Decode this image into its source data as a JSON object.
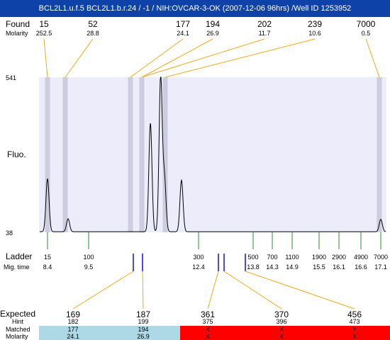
{
  "title": "BCL2L1.u.f.5  BCL2L1.b.r.24 / -1  / NIH:OVCAR-3-OK (2007-12-06 96hrs) /Well ID 1253952",
  "labels": {
    "found": "Found",
    "molarity": "Molarity",
    "fluo": "Fluo.",
    "ladder": "Ladder",
    "mig_time": "Mig. time",
    "expected": "Expected",
    "hint": "Hint",
    "matched": "Matched",
    "molarity_bottom": "Molarity"
  },
  "colors": {
    "title_bg": "#0e42a8",
    "plot_bg": "#ececfb",
    "peak_band": "#cdcde0",
    "found_line": "#f2a81e",
    "ladder_tick": "#2e8b2e",
    "marker_blue": "#1010d0",
    "expected_red": "#e01010",
    "matched_ok": "#add8e6",
    "matched_missing": "#ff0000"
  },
  "chart_data": {
    "type": "line",
    "ylabel": "Fluo.",
    "ylim": [
      38,
      541
    ],
    "y_ticks": [
      "541",
      "38"
    ],
    "found": [
      {
        "size": "15",
        "molarity": "252.5"
      },
      {
        "size": "52",
        "molarity": "28.8"
      },
      {
        "size": "177",
        "molarity": "24.1"
      },
      {
        "size": "194",
        "molarity": "26.9"
      },
      {
        "size": "202",
        "molarity": "11.7"
      },
      {
        "size": "239",
        "molarity": "10.6"
      },
      {
        "size": "7000",
        "molarity": "0.5"
      }
    ],
    "ladder": [
      {
        "size": "15",
        "time": "8.4"
      },
      {
        "size": "100",
        "time": "9.5"
      },
      {
        "size": "300",
        "time": "12.4"
      },
      {
        "size": "500",
        "time": "13.8"
      },
      {
        "size": "700",
        "time": "14.3"
      },
      {
        "size": "1100",
        "time": "14.9"
      },
      {
        "size": "1900",
        "time": "15.5"
      },
      {
        "size": "2900",
        "time": "16.1"
      },
      {
        "size": "4900",
        "time": "16.6"
      },
      {
        "size": "7000",
        "time": "17.1"
      }
    ],
    "expected": [
      {
        "size": "169",
        "hint": "182",
        "matched": "177",
        "molarity": "24.1",
        "status": "matched"
      },
      {
        "size": "187",
        "hint": "199",
        "matched": "194",
        "molarity": "26.9",
        "status": "matched"
      },
      {
        "size": "361",
        "hint": "375",
        "matched": "X",
        "molarity": "X",
        "status": "missing"
      },
      {
        "size": "370",
        "hint": "396",
        "matched": "X",
        "molarity": "X",
        "status": "missing"
      },
      {
        "size": "456",
        "hint": "473",
        "matched": "X",
        "molarity": "X",
        "status": "missing"
      }
    ],
    "trace_peaks": [
      {
        "time": 8.4,
        "height": 210
      },
      {
        "time": 8.95,
        "height": 80
      },
      {
        "time": 11.13,
        "height": 390
      },
      {
        "time": 11.4,
        "height": 541
      },
      {
        "time": 11.5,
        "height": 210
      },
      {
        "time": 11.95,
        "height": 205
      },
      {
        "time": 17.1,
        "height": 78
      }
    ]
  }
}
